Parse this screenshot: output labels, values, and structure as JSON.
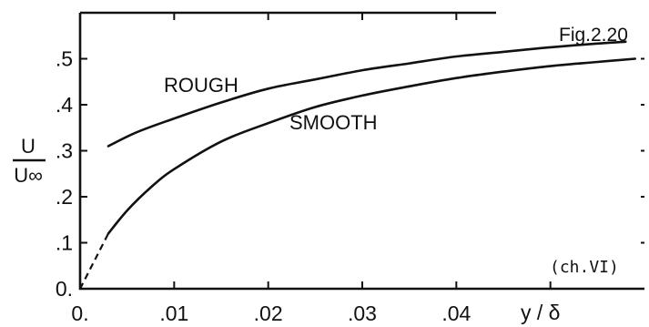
{
  "chart_data": {
    "type": "line",
    "figure_label": "Fig.2.20",
    "note": "(ch.VI)",
    "xlabel": "y / δ",
    "ylabel_numerator": "U",
    "ylabel_denominator": "U∞",
    "xlim": [
      0,
      0.06
    ],
    "ylim": [
      0,
      0.6
    ],
    "x_tick_labels": [
      "0.",
      ".01",
      ".02",
      ".03",
      ".04"
    ],
    "x_tick_values": [
      0,
      0.01,
      0.02,
      0.03,
      0.04
    ],
    "y_tick_labels": [
      "0.",
      ".1",
      ".2",
      ".3",
      ".4",
      ".5"
    ],
    "y_tick_values": [
      0,
      0.1,
      0.2,
      0.3,
      0.4,
      0.5
    ],
    "grid": false,
    "series": [
      {
        "name": "ROUGH",
        "x": [
          0.003,
          0.006,
          0.01,
          0.015,
          0.02,
          0.025,
          0.03,
          0.035,
          0.04,
          0.045,
          0.05,
          0.055,
          0.058
        ],
        "y": [
          0.31,
          0.34,
          0.37,
          0.405,
          0.435,
          0.455,
          0.475,
          0.49,
          0.505,
          0.515,
          0.525,
          0.533,
          0.537
        ]
      },
      {
        "name": "SMOOTH",
        "x": [
          0.003,
          0.005,
          0.0075,
          0.01,
          0.015,
          0.02,
          0.025,
          0.03,
          0.035,
          0.04,
          0.045,
          0.05,
          0.055,
          0.059
        ],
        "y": [
          0.12,
          0.17,
          0.22,
          0.26,
          0.32,
          0.36,
          0.395,
          0.42,
          0.44,
          0.458,
          0.472,
          0.484,
          0.493,
          0.5
        ]
      }
    ],
    "extrapolation": {
      "x": [
        0,
        0.001,
        0.002,
        0.003
      ],
      "y": [
        0,
        0.04,
        0.08,
        0.12
      ]
    }
  }
}
